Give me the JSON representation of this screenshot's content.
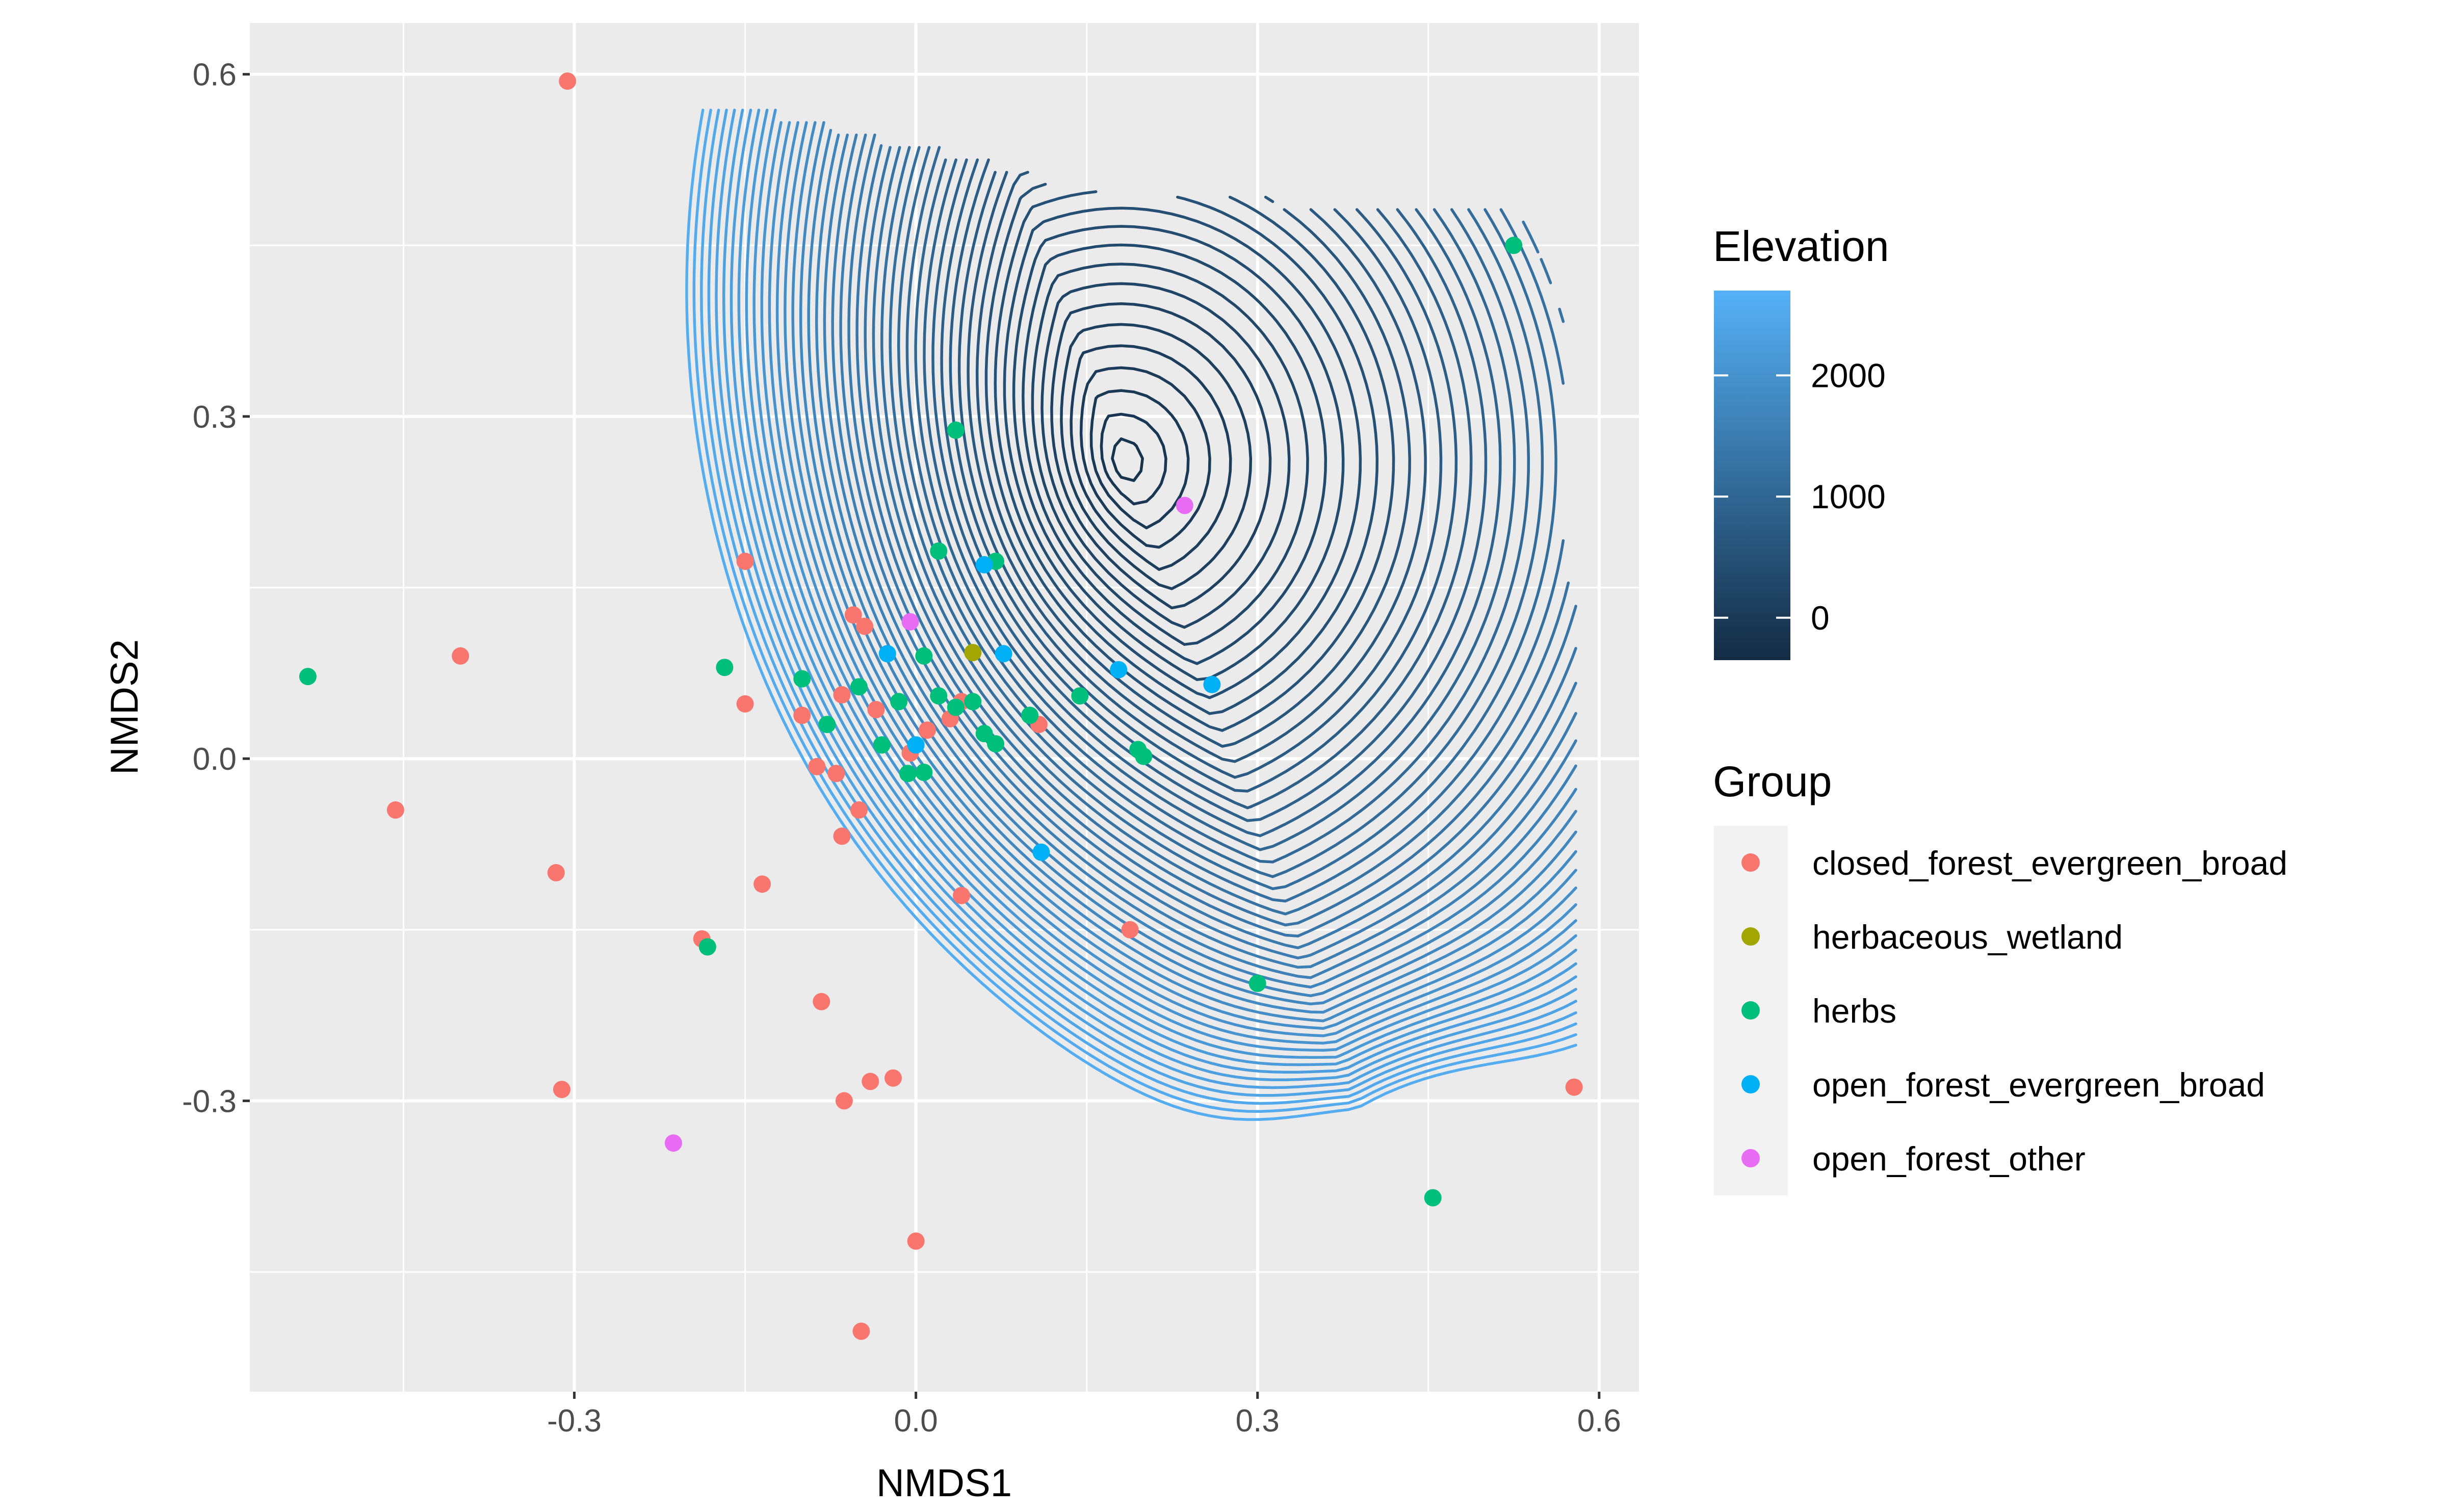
{
  "chart_data": {
    "type": "scatter",
    "title": "",
    "xlabel": "NMDS1",
    "ylabel": "NMDS2",
    "xlim": [
      -0.585,
      0.635
    ],
    "ylim": [
      -0.555,
      0.645
    ],
    "x_ticks": [
      -0.3,
      0.0,
      0.3,
      0.6
    ],
    "y_ticks": [
      0.6,
      0.3,
      0.0,
      -0.3
    ],
    "x_tick_labels": [
      "-0.3",
      "0.0",
      "0.3",
      "0.6"
    ],
    "y_tick_labels": [
      "0.6",
      "0.3",
      "0.0",
      "-0.3"
    ],
    "grid": true,
    "panel_background": "#ebebeb",
    "contour": {
      "variable": "Elevation",
      "description_peak": [
        0.18,
        0.26
      ],
      "peak_value": -200,
      "low_color": "#132b43",
      "high_color": "#56b1f7"
    },
    "color_legend": {
      "title": "Elevation",
      "ticks": [
        {
          "value": 0,
          "label": "0"
        },
        {
          "value": 1000,
          "label": "1000"
        },
        {
          "value": 2000,
          "label": "2000"
        }
      ],
      "range": [
        -350,
        2700
      ]
    },
    "group_legend": {
      "title": "Group",
      "placement": "right"
    },
    "series": [
      {
        "name": "closed_forest_evergreen_broad",
        "color": "#f8766d",
        "points": [
          [
            -0.306,
            0.594
          ],
          [
            -0.4,
            0.09
          ],
          [
            -0.457,
            -0.045
          ],
          [
            -0.316,
            -0.1
          ],
          [
            -0.311,
            -0.29
          ],
          [
            -0.15,
            0.173
          ],
          [
            -0.15,
            0.048
          ],
          [
            -0.135,
            -0.11
          ],
          [
            -0.1,
            0.038
          ],
          [
            -0.087,
            -0.007
          ],
          [
            -0.07,
            -0.013
          ],
          [
            -0.065,
            0.056
          ],
          [
            -0.055,
            0.126
          ],
          [
            -0.045,
            0.116
          ],
          [
            -0.035,
            0.043
          ],
          [
            -0.05,
            -0.045
          ],
          [
            -0.065,
            -0.068
          ],
          [
            -0.188,
            -0.158
          ],
          [
            -0.083,
            -0.213
          ],
          [
            -0.04,
            -0.283
          ],
          [
            -0.02,
            -0.28
          ],
          [
            -0.063,
            -0.3
          ],
          [
            0.0,
            -0.423
          ],
          [
            -0.048,
            -0.502
          ],
          [
            0.04,
            -0.12
          ],
          [
            0.03,
            0.035
          ],
          [
            0.04,
            0.05
          ],
          [
            0.108,
            0.03
          ],
          [
            0.188,
            -0.15
          ],
          [
            0.578,
            -0.288
          ],
          [
            0.01,
            0.025
          ],
          [
            -0.005,
            0.005
          ]
        ]
      },
      {
        "name": "herbaceous_wetland",
        "color": "#a3a500",
        "points": [
          [
            0.05,
            0.093
          ]
        ]
      },
      {
        "name": "herbs",
        "color": "#00bf7d",
        "points": [
          [
            -0.534,
            0.072
          ],
          [
            -0.168,
            0.08
          ],
          [
            -0.183,
            -0.165
          ],
          [
            -0.1,
            0.07
          ],
          [
            -0.078,
            0.03
          ],
          [
            -0.05,
            0.063
          ],
          [
            -0.03,
            0.012
          ],
          [
            -0.015,
            0.05
          ],
          [
            -0.007,
            -0.013
          ],
          [
            0.007,
            0.09
          ],
          [
            0.007,
            -0.012
          ],
          [
            0.02,
            0.055
          ],
          [
            0.035,
            0.045
          ],
          [
            0.05,
            0.05
          ],
          [
            0.06,
            0.022
          ],
          [
            0.07,
            0.013
          ],
          [
            0.1,
            0.038
          ],
          [
            0.144,
            0.055
          ],
          [
            0.195,
            0.008
          ],
          [
            0.2,
            0.002
          ],
          [
            0.02,
            0.182
          ],
          [
            0.035,
            0.288
          ],
          [
            0.07,
            0.173
          ],
          [
            0.3,
            -0.197
          ],
          [
            0.454,
            -0.385
          ],
          [
            0.525,
            0.45
          ]
        ]
      },
      {
        "name": "open_forest_evergreen_broad",
        "color": "#00b0f6",
        "points": [
          [
            -0.025,
            0.092
          ],
          [
            0.0,
            0.012
          ],
          [
            0.06,
            0.17
          ],
          [
            0.077,
            0.092
          ],
          [
            0.11,
            -0.082
          ],
          [
            0.178,
            0.078
          ],
          [
            0.26,
            0.065
          ]
        ]
      },
      {
        "name": "open_forest_other",
        "color": "#e76bf3",
        "points": [
          [
            -0.213,
            -0.337
          ],
          [
            -0.005,
            0.12
          ],
          [
            0.236,
            0.222
          ]
        ]
      }
    ]
  }
}
